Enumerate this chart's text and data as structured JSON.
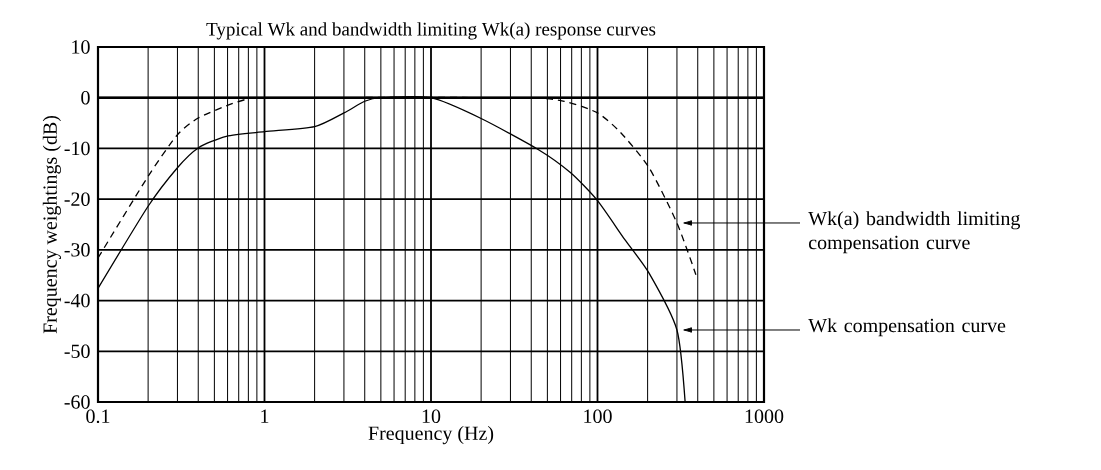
{
  "chart_data": {
    "type": "line",
    "title": "Typical Wk and bandwidth limiting Wk(a) response curves",
    "xlabel": "Frequency (Hz)",
    "ylabel": "Frequency weightings (dB)",
    "log": "x",
    "grid": true,
    "marker": "none",
    "xlim": [
      0.1,
      1000
    ],
    "ylim": [
      -60,
      10
    ],
    "xticks": [
      0.1,
      1,
      10,
      100,
      1000
    ],
    "yticks": [
      10,
      0,
      -10,
      -20,
      -30,
      -40,
      -50,
      -60
    ],
    "ref_lines": [
      {
        "axis": "y",
        "value": 0
      }
    ],
    "series": [
      {
        "name": "Wk compensation curve",
        "color": "#000000",
        "line_style": "solid",
        "x": [
          0.1,
          0.2,
          0.3,
          0.4,
          0.59,
          1,
          2,
          3,
          4,
          5,
          10,
          20,
          44,
          69,
          100,
          146,
          204,
          300,
          336
        ],
        "values": [
          -37.6,
          -21.4,
          -13.8,
          -9.9,
          -7.6,
          -6.7,
          -5.7,
          -3.0,
          -0.7,
          0,
          0,
          -4.1,
          -10.2,
          -14.8,
          -20.3,
          -28,
          -34.6,
          -45.8,
          -60
        ]
      },
      {
        "name": "Wk(a) bandwidth limiting compensation curve",
        "color": "#000000",
        "line_style": "dashed",
        "x": [
          0.1,
          0.2,
          0.3,
          0.4,
          0.59,
          0.78,
          1,
          33,
          63,
          100,
          138,
          204,
          300,
          390
        ],
        "values": [
          -31.6,
          -15.5,
          -7.3,
          -4,
          -1.6,
          -0.3,
          0,
          0,
          -0.7,
          -3,
          -6.9,
          -13.8,
          -24.7,
          -34.9
        ]
      }
    ]
  }
}
